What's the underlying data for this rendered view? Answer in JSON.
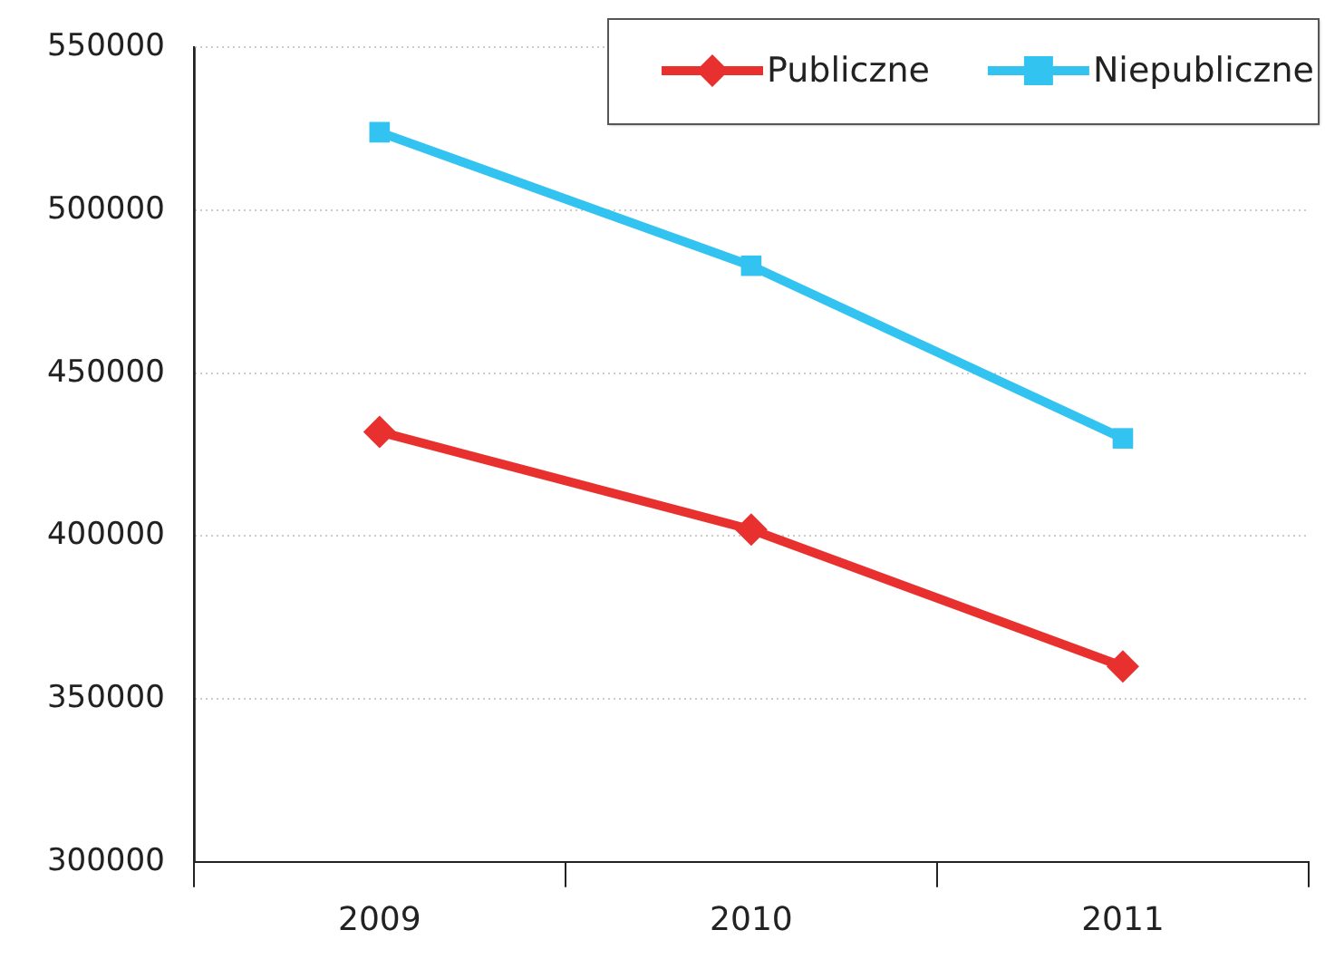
{
  "chart_data": {
    "type": "line",
    "categories": [
      "2009",
      "2010",
      "2011"
    ],
    "series": [
      {
        "name": "Publiczne",
        "color": "#e8312f",
        "values": [
          432000,
          402000,
          360000
        ],
        "marker": "diamond"
      },
      {
        "name": "Niepubliczne",
        "color": "#33c3f0",
        "values": [
          524000,
          483000,
          430000
        ],
        "marker": "square"
      }
    ],
    "ylim": [
      300000,
      550000
    ],
    "yticks": [
      300000,
      350000,
      400000,
      450000,
      500000,
      550000
    ],
    "grid": "y",
    "legend": "top right",
    "line_style": "solid"
  }
}
